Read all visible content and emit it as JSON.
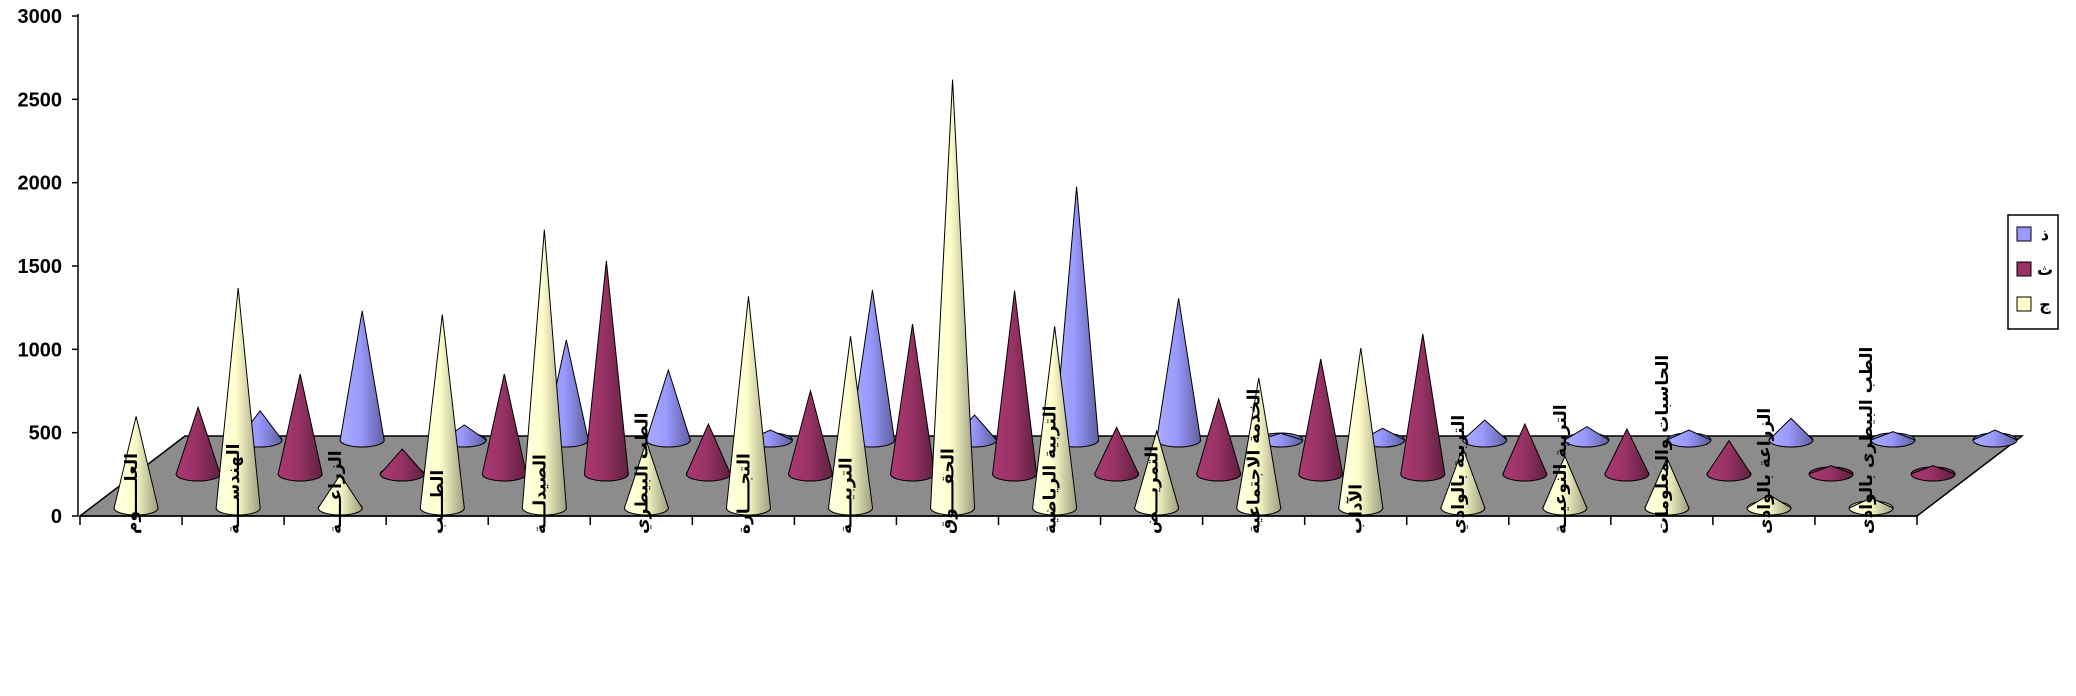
{
  "chart_data": {
    "type": "bar",
    "subtype": "3d-cone",
    "title": "",
    "xlabel": "",
    "ylabel": "",
    "ylim": [
      0,
      3000
    ],
    "yticks": [
      0,
      500,
      1000,
      1500,
      2000,
      2500,
      3000
    ],
    "grid": false,
    "legend_position": "right",
    "categories": [
      "العلـــــوم",
      "الهندســــة",
      "الزراعــــة",
      "الطـــب",
      "الصيدلـــة",
      "الطب البيطري",
      "التجــــارة",
      "التربيــــة",
      "الحقــــوق",
      "التربية الرياضية",
      "التمريـــض",
      "الخدمة الاجتماعية",
      "الآداب",
      "التربية بالوادي",
      "التربية النوعيــة",
      "الحاسبات والمعلومات",
      "الزراعة بالوادى",
      "الطب البيطرى بالوادى"
    ],
    "series": [
      {
        "name": "ذ",
        "color": "#9999ff",
        "values": [
          175,
          775,
          90,
          600,
          420,
          60,
          900,
          150,
          1520,
          850,
          40,
          70,
          120,
          80,
          60,
          130,
          50,
          60
        ]
      },
      {
        "name": "ث",
        "color": "#993366",
        "values": [
          400,
          600,
          150,
          600,
          1280,
          300,
          500,
          900,
          1100,
          280,
          450,
          690,
          840,
          300,
          270,
          200,
          50,
          50
        ]
      },
      {
        "name": "ج",
        "color": "#ffffcc",
        "values": [
          550,
          1320,
          200,
          1160,
          1670,
          400,
          1270,
          1030,
          2570,
          1090,
          460,
          780,
          960,
          360,
          310,
          300,
          80,
          60
        ]
      }
    ]
  }
}
